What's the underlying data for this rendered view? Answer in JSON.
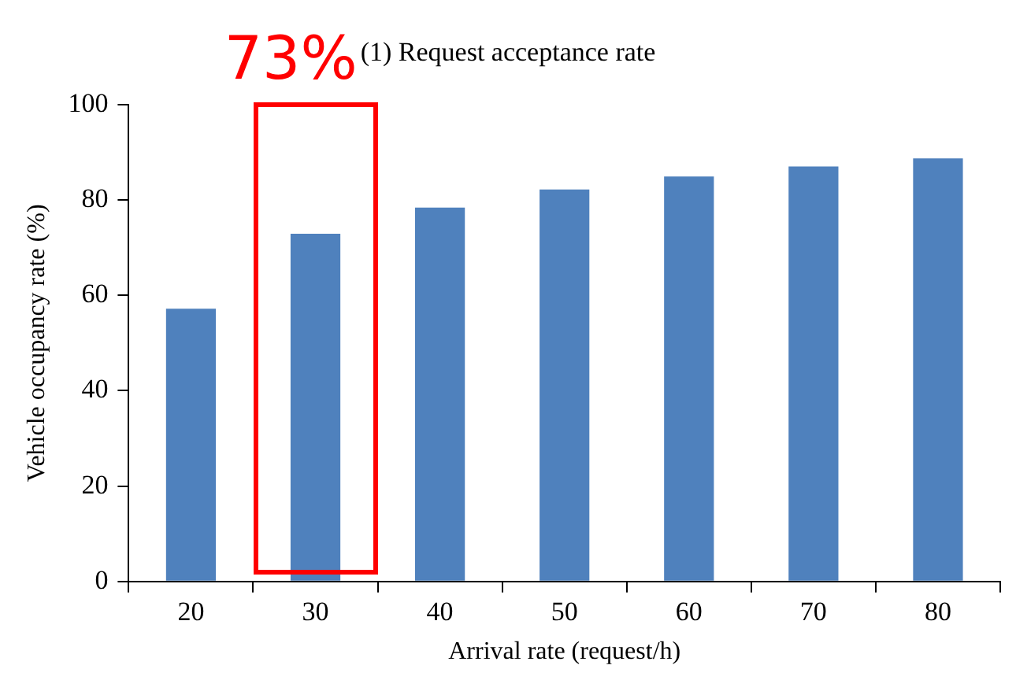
{
  "chart_data": {
    "type": "bar",
    "title": "(1) Request acceptance rate",
    "xlabel": "Arrival rate (request/h)",
    "ylabel": "Vehicle occupancy rate (%)",
    "categories": [
      "20",
      "30",
      "40",
      "50",
      "60",
      "70",
      "80"
    ],
    "values": [
      57.2,
      72.9,
      78.4,
      82.2,
      84.9,
      87.0,
      88.7
    ],
    "color": "#4f81bd",
    "ylim": [
      0,
      100
    ],
    "yticks": [
      0,
      20,
      40,
      60,
      80,
      100
    ],
    "grid": false,
    "annotations": [
      "73%"
    ]
  }
}
